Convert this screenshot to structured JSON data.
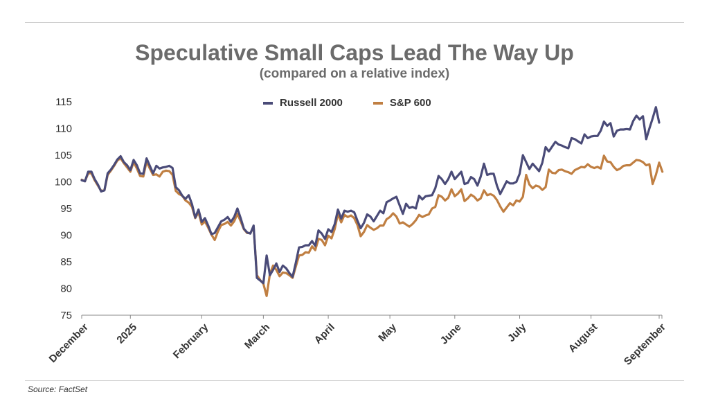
{
  "chart_data": {
    "type": "line",
    "title": "Speculative Small Caps Lead The Way Up",
    "subtitle": "(compared on a relative index)",
    "source": "Source: FactSet",
    "ylim": [
      75,
      115
    ],
    "yticks": [
      75,
      80,
      85,
      90,
      95,
      100,
      105,
      110,
      115
    ],
    "xticks": [
      {
        "label": "December",
        "i": 0
      },
      {
        "label": "2025",
        "i": 15
      },
      {
        "label": "February",
        "i": 37
      },
      {
        "label": "March",
        "i": 56
      },
      {
        "label": "April",
        "i": 76
      },
      {
        "label": "May",
        "i": 95
      },
      {
        "label": "June",
        "i": 115
      },
      {
        "label": "July",
        "i": 135
      },
      {
        "label": "August",
        "i": 157
      },
      {
        "label": "September",
        "i": 178
      }
    ],
    "legend_position": "top-center",
    "series": [
      {
        "name": "Russell 2000",
        "color": "#4a4b78",
        "values": [
          100.3,
          100.1,
          101.9,
          101.9,
          100.5,
          99.5,
          98.2,
          98.4,
          101.6,
          102.3,
          103.2,
          104.2,
          104.8,
          103.7,
          103.1,
          102.2,
          104.1,
          103.1,
          101.6,
          101.5,
          104.4,
          103.0,
          101.6,
          103.0,
          102.5,
          102.7,
          102.8,
          103.0,
          102.6,
          99.0,
          98.4,
          97.4,
          96.8,
          97.5,
          95.8,
          93.3,
          94.8,
          92.5,
          93.2,
          91.8,
          90.2,
          90.4,
          91.5,
          92.6,
          92.9,
          93.4,
          92.5,
          93.4,
          95.0,
          93.2,
          91.2,
          90.5,
          90.3,
          91.8,
          82.0,
          81.5,
          81.0,
          86.2,
          82.5,
          83.5,
          84.7,
          83.1,
          84.3,
          83.8,
          82.9,
          82.2,
          84.8,
          87.7,
          87.8,
          88.1,
          88.1,
          88.9,
          88.0,
          90.9,
          90.3,
          89.3,
          91.1,
          90.6,
          92.1,
          94.8,
          93.1,
          94.6,
          94.4,
          94.6,
          94.3,
          92.7,
          91.3,
          92.3,
          93.9,
          93.5,
          92.6,
          93.6,
          94.6,
          94.1,
          96.2,
          96.5,
          96.9,
          97.2,
          95.6,
          94.0,
          95.9,
          95.1,
          95.3,
          95.0,
          97.4,
          96.7,
          97.3,
          97.4,
          97.5,
          98.8,
          101.1,
          100.5,
          99.6,
          100.5,
          101.9,
          100.5,
          101.2,
          101.9,
          99.6,
          99.8,
          100.9,
          100.5,
          99.3,
          101.0,
          103.4,
          101.3,
          101.5,
          101.5,
          99.3,
          97.7,
          98.9,
          100.1,
          99.7,
          99.7,
          100.0,
          101.5,
          105.0,
          103.7,
          102.4,
          103.4,
          102.7,
          102.0,
          103.6,
          106.5,
          105.7,
          106.6,
          107.5,
          107.0,
          106.8,
          106.5,
          106.3,
          108.2,
          108.0,
          107.6,
          107.2,
          108.9,
          108.2,
          108.5,
          108.6,
          108.6,
          109.6,
          111.3,
          110.5,
          111.0,
          108.5,
          109.6,
          109.8,
          109.8,
          109.9,
          109.8,
          111.4,
          112.4,
          111.7,
          112.3,
          108.0,
          110.0,
          111.9,
          114.0,
          111.1
        ]
      },
      {
        "name": "S&P 600",
        "color": "#c07f42",
        "values": [
          100.4,
          100.1,
          101.6,
          101.6,
          100.3,
          99.3,
          98.3,
          98.4,
          101.3,
          102.1,
          103.0,
          104.0,
          104.4,
          103.5,
          102.7,
          101.9,
          103.7,
          102.5,
          101.1,
          101.0,
          103.8,
          102.5,
          101.3,
          101.4,
          101.0,
          101.9,
          102.1,
          102.0,
          101.3,
          98.3,
          97.7,
          97.4,
          96.5,
          96.1,
          95.3,
          93.2,
          94.3,
          92.0,
          92.6,
          91.4,
          90.1,
          89.1,
          90.7,
          91.9,
          92.1,
          92.5,
          91.8,
          92.6,
          94.0,
          92.6,
          91.1,
          90.4,
          90.4,
          91.5,
          82.5,
          81.6,
          80.9,
          78.6,
          82.7,
          84.3,
          83.5,
          82.3,
          83.0,
          82.9,
          82.5,
          82.0,
          84.1,
          86.2,
          86.3,
          86.8,
          86.7,
          87.9,
          87.2,
          89.3,
          89.1,
          88.1,
          89.9,
          89.4,
          91.2,
          94.0,
          92.4,
          93.8,
          93.4,
          93.7,
          93.2,
          91.9,
          89.8,
          90.6,
          91.9,
          91.4,
          91.0,
          91.3,
          91.8,
          91.8,
          93.0,
          93.4,
          94.1,
          93.5,
          92.2,
          92.4,
          92.0,
          91.6,
          92.1,
          92.8,
          93.8,
          93.4,
          93.7,
          93.9,
          95.0,
          95.3,
          97.5,
          97.2,
          96.5,
          97.0,
          98.6,
          97.3,
          97.8,
          98.6,
          96.4,
          96.9,
          97.6,
          97.2,
          96.5,
          96.9,
          98.4,
          97.5,
          97.7,
          97.4,
          96.6,
          95.4,
          94.4,
          95.2,
          96.0,
          95.6,
          96.5,
          96.3,
          97.2,
          101.3,
          99.5,
          98.8,
          99.3,
          99.1,
          98.5,
          99.0,
          102.3,
          101.7,
          101.6,
          102.2,
          102.3,
          102.0,
          101.8,
          101.5,
          102.2,
          102.5,
          102.8,
          102.7,
          103.3,
          102.8,
          102.6,
          102.8,
          102.5,
          104.9,
          103.8,
          103.7,
          102.8,
          102.2,
          102.5,
          103.0,
          103.1,
          103.1,
          103.6,
          104.1,
          104.0,
          103.7,
          103.1,
          103.3,
          99.6,
          101.3,
          103.6,
          101.9
        ]
      }
    ]
  }
}
